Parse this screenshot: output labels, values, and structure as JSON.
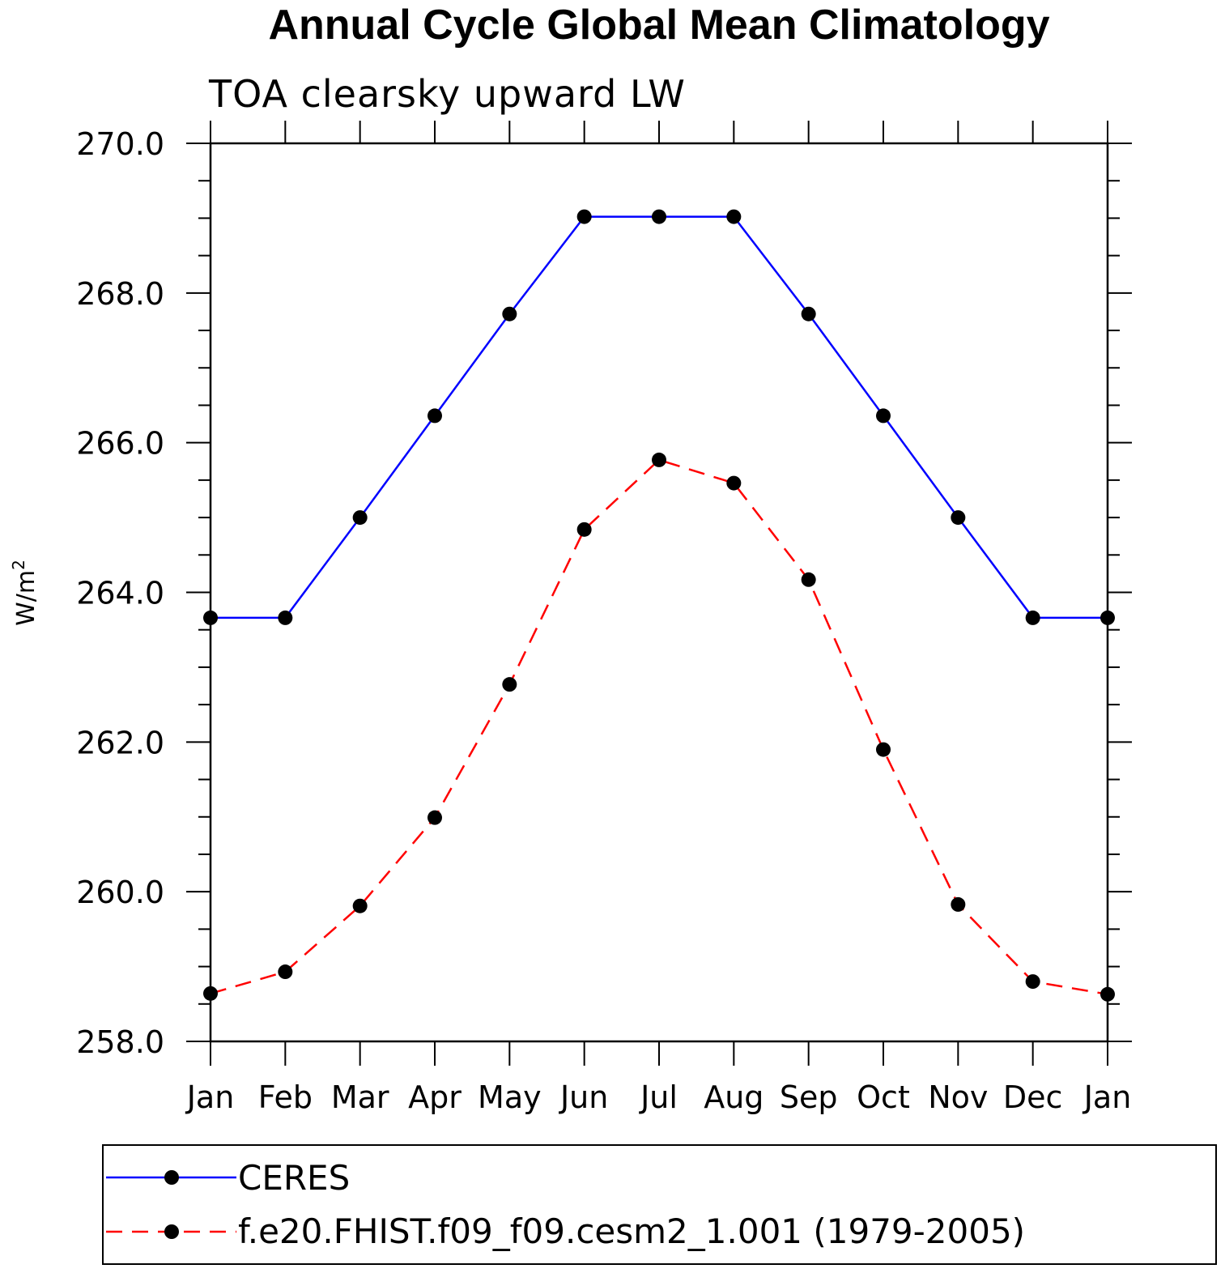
{
  "chart_data": {
    "type": "line",
    "title": "Annual Cycle Global Mean Climatology",
    "subtitle": "TOA clearsky upward LW",
    "ylabel": "W/m",
    "ylabel_superscript": "2",
    "xlabel": "",
    "categories": [
      "Jan",
      "Feb",
      "Mar",
      "Apr",
      "May",
      "Jun",
      "Jul",
      "Aug",
      "Sep",
      "Oct",
      "Nov",
      "Dec",
      "Jan"
    ],
    "ylim": [
      258.0,
      270.0
    ],
    "yticks": [
      "258.0",
      "260.0",
      "262.0",
      "264.0",
      "266.0",
      "268.0",
      "270.0"
    ],
    "grid": false,
    "legend_position": "bottom",
    "series": [
      {
        "name": "CERES",
        "color": "#0000ff",
        "dash": "solid",
        "marker": "filled-circle",
        "values": [
          263.66,
          263.66,
          265.0,
          266.36,
          267.72,
          269.02,
          269.02,
          269.02,
          267.72,
          266.36,
          265.0,
          263.66,
          263.66
        ]
      },
      {
        "name": "f.e20.FHIST.f09_f09.cesm2_1.001 (1979-2005)",
        "color": "#ff0000",
        "dash": "dashed",
        "marker": "filled-circle",
        "values": [
          258.64,
          258.93,
          259.81,
          260.99,
          262.77,
          264.84,
          265.77,
          265.46,
          264.17,
          261.9,
          259.83,
          258.8,
          258.63
        ]
      }
    ]
  }
}
